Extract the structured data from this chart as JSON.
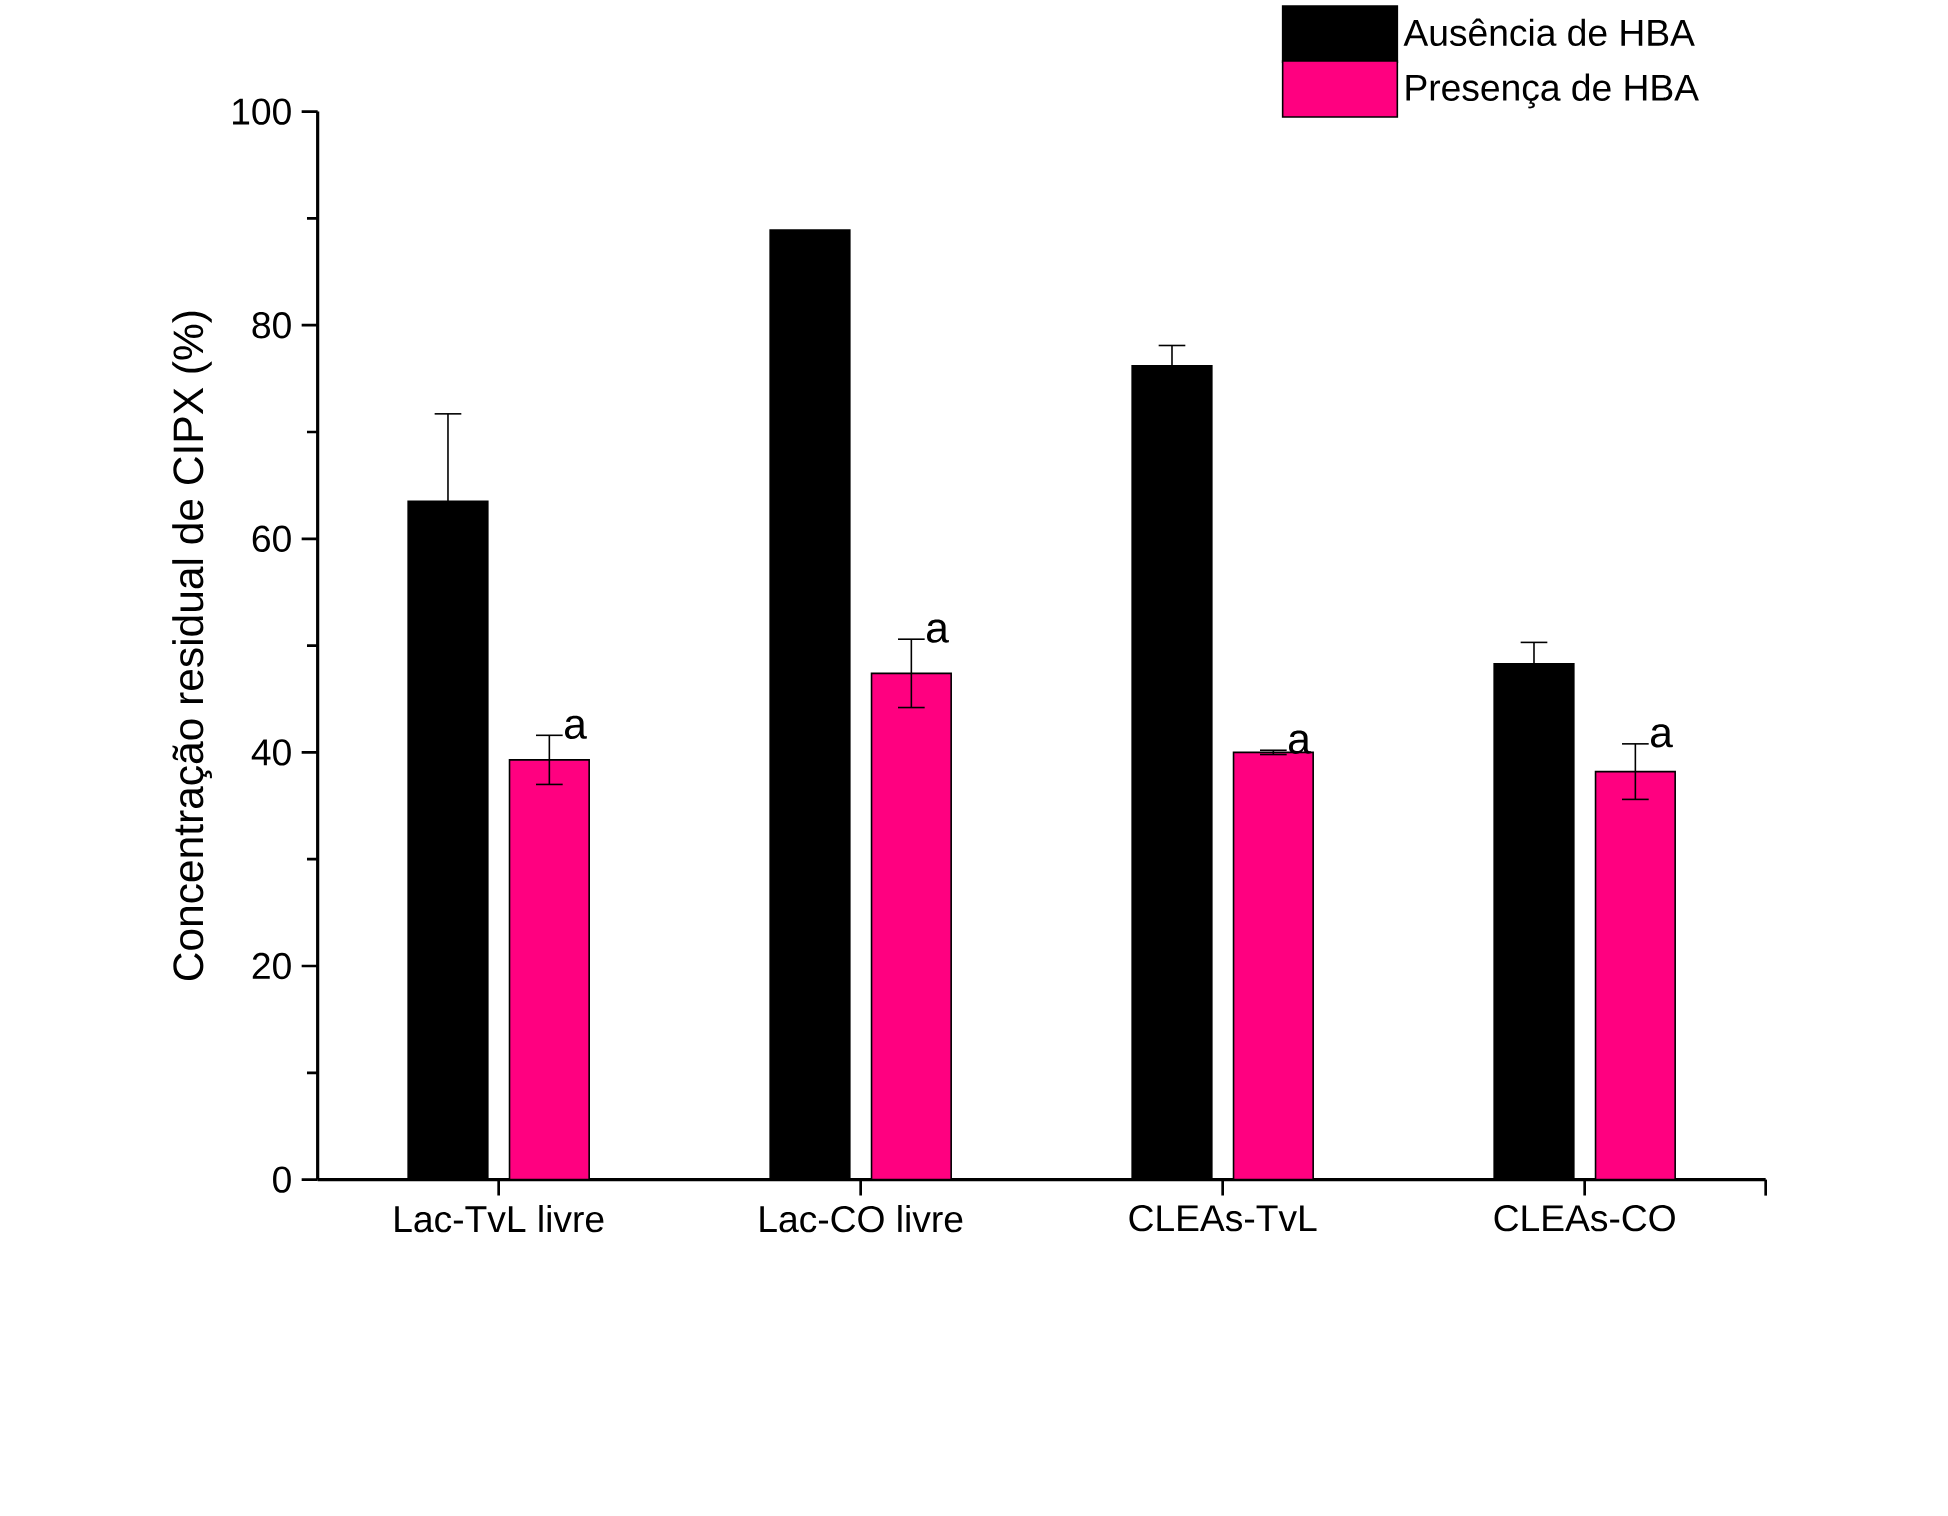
{
  "chart_data": {
    "type": "bar",
    "ylabel": "Concentração residual de CIPX (%)",
    "categories": [
      "Lac-TvL livre",
      "Lac-CO livre",
      "CLEAs-TvL",
      "CLEAs-CO"
    ],
    "series": [
      {
        "name": "Ausência de HBA",
        "color": "#000000",
        "values": [
          63.5,
          88.9,
          76.2,
          48.3
        ],
        "errors": [
          8.2,
          null,
          1.9,
          2.0
        ]
      },
      {
        "name": "Presença de HBA",
        "color": "#ff0080",
        "values": [
          39.3,
          47.4,
          40.0,
          38.2
        ],
        "errors": [
          2.3,
          3.2,
          0.2,
          2.6
        ]
      }
    ],
    "ylim": [
      0,
      100
    ],
    "yticks": [
      0,
      20,
      40,
      60,
      80,
      100
    ],
    "grid": false,
    "legend": "top right",
    "annotations": [
      "a",
      "a",
      "a",
      "a"
    ]
  }
}
